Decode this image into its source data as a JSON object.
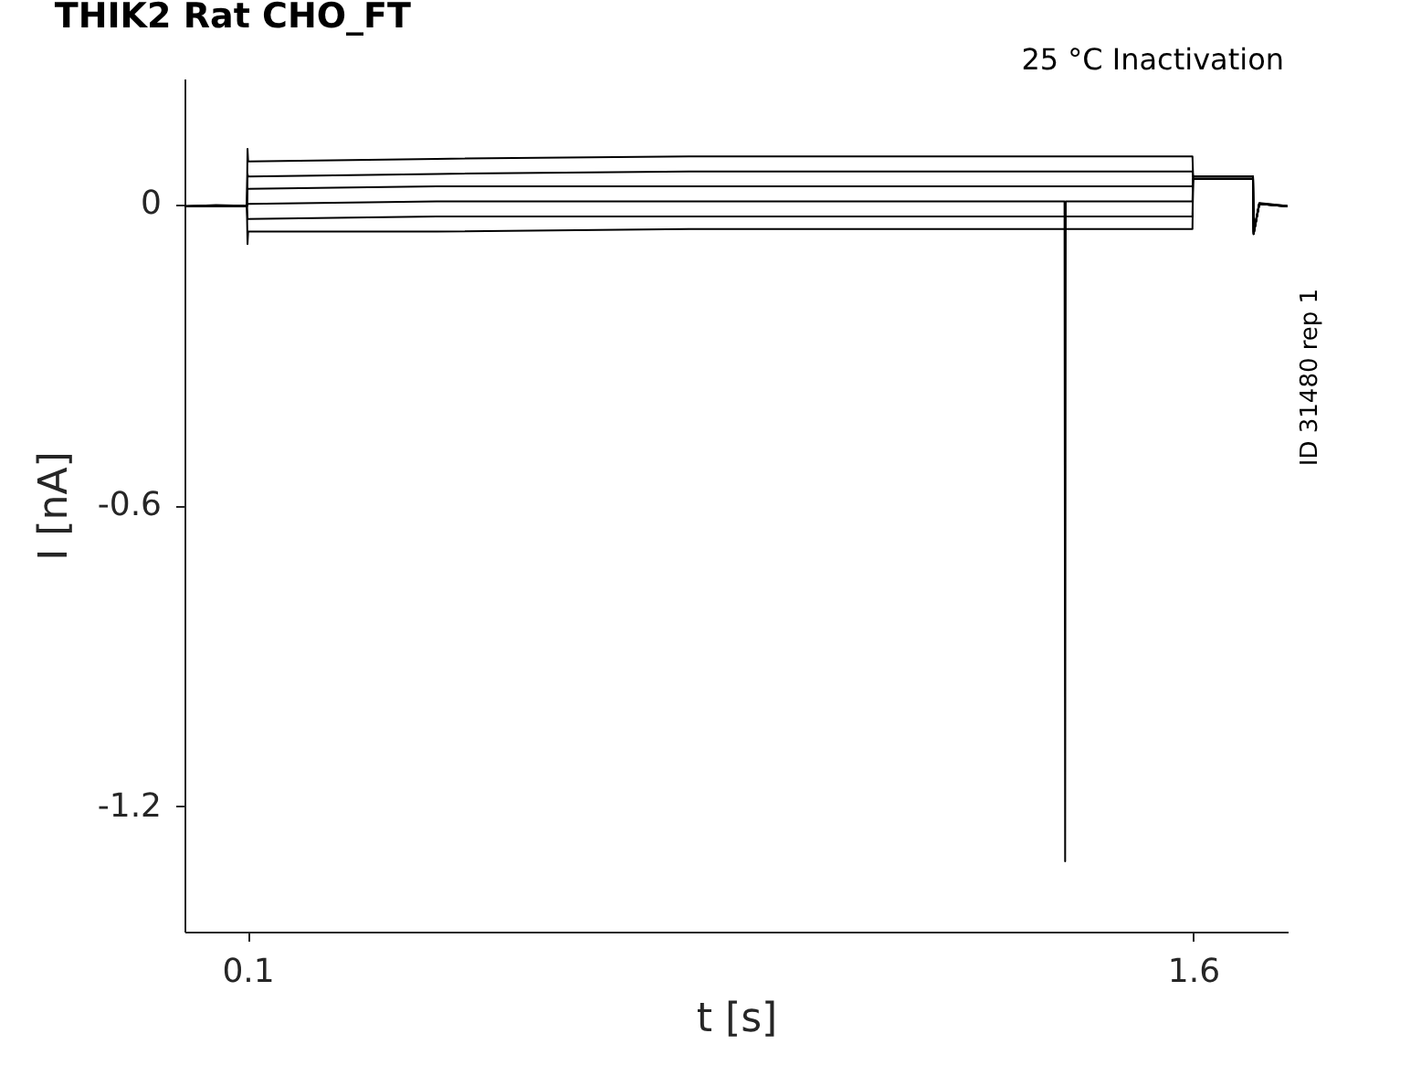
{
  "chart_data": {
    "type": "line",
    "title": "THIK2  Rat  CHO_FT",
    "xlabel": "t [s]",
    "ylabel": "I [nA]",
    "annotations": [
      "25 °C  Inactivation",
      "ID 31480 rep 1"
    ],
    "xlim": [
      0,
      1.75
    ],
    "ylim": [
      -1.45,
      0.25
    ],
    "xticks": [
      0.1,
      1.6
    ],
    "yticks": [
      -1.2,
      -0.6,
      0
    ],
    "grid": false,
    "legend": false,
    "marker": "none",
    "line_style": "solid",
    "series": [
      {
        "color": "#000000",
        "x": [
          0,
          0.05,
          0.099,
          0.1,
          0.101,
          0.4,
          0.8,
          1.2,
          1.599,
          1.6,
          1.695,
          1.696,
          1.705,
          1.75
        ],
        "values": [
          -0.005,
          -0.002,
          -0.004,
          0.11,
          0.085,
          0.09,
          0.095,
          0.095,
          0.095,
          0.055,
          0.055,
          -0.06,
          0.0,
          -0.005
        ]
      },
      {
        "color": "#000000",
        "x": [
          0,
          0.05,
          0.099,
          0.1,
          0.101,
          0.4,
          0.8,
          1.2,
          1.599,
          1.6,
          1.695,
          1.696,
          1.705,
          1.75
        ],
        "values": [
          -0.005,
          -0.003,
          -0.004,
          0.06,
          0.055,
          0.06,
          0.065,
          0.065,
          0.065,
          0.055,
          0.055,
          -0.055,
          0.002,
          -0.004
        ]
      },
      {
        "color": "#000000",
        "x": [
          0,
          0.05,
          0.099,
          0.1,
          0.101,
          0.4,
          0.8,
          1.2,
          1.599,
          1.6,
          1.695,
          1.696,
          1.705,
          1.75
        ],
        "values": [
          -0.004,
          -0.004,
          -0.005,
          0.03,
          0.03,
          0.035,
          0.035,
          0.035,
          0.035,
          0.05,
          0.05,
          -0.058,
          0.001,
          -0.004
        ]
      },
      {
        "color": "#000000",
        "x": [
          0,
          0.05,
          0.099,
          0.1,
          0.101,
          0.4,
          0.8,
          1.2,
          1.396,
          1.397,
          1.398,
          1.599,
          1.6,
          1.695,
          1.696,
          1.705,
          1.75
        ],
        "values": [
          -0.005,
          -0.004,
          -0.004,
          0.0,
          0.0,
          0.005,
          0.005,
          0.005,
          0.005,
          -1.31,
          0.005,
          0.005,
          0.055,
          0.055,
          -0.06,
          0.0,
          -0.005
        ]
      },
      {
        "color": "#000000",
        "x": [
          0,
          0.05,
          0.099,
          0.1,
          0.101,
          0.4,
          0.8,
          1.2,
          1.599,
          1.6,
          1.695,
          1.696,
          1.705,
          1.75
        ],
        "values": [
          -0.005,
          -0.004,
          -0.005,
          -0.03,
          -0.03,
          -0.025,
          -0.025,
          -0.025,
          -0.025,
          0.05,
          0.05,
          -0.056,
          0.0,
          -0.005
        ]
      },
      {
        "color": "#000000",
        "x": [
          0,
          0.05,
          0.099,
          0.1,
          0.101,
          0.4,
          0.8,
          1.2,
          1.599,
          1.6,
          1.695,
          1.696,
          1.705,
          1.75
        ],
        "values": [
          -0.005,
          -0.004,
          -0.004,
          -0.08,
          -0.055,
          -0.055,
          -0.05,
          -0.05,
          -0.05,
          0.055,
          0.055,
          -0.06,
          0.0,
          -0.005
        ]
      }
    ]
  }
}
